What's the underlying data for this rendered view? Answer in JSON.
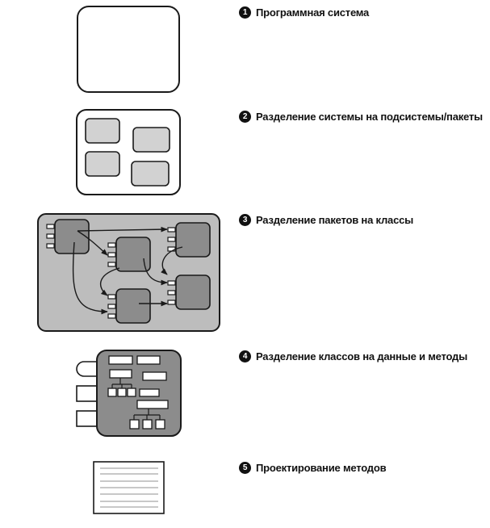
{
  "steps": [
    {
      "number": "1",
      "text": "Программная система"
    },
    {
      "number": "2",
      "text": "Разделение системы на подсистемы/пакеты"
    },
    {
      "number": "3",
      "text": "Разделение пакетов на классы"
    },
    {
      "number": "4",
      "text": "Разделение классов на данные и методы"
    },
    {
      "number": "5",
      "text": "Проектирование методов"
    }
  ],
  "colors": {
    "stroke": "#1a1a1a",
    "light_fill": "#d2d2d2",
    "medium_fill": "#bdbdbd",
    "dark_fill": "#8c8c8c",
    "doc_lines": "#a8a8a8"
  }
}
